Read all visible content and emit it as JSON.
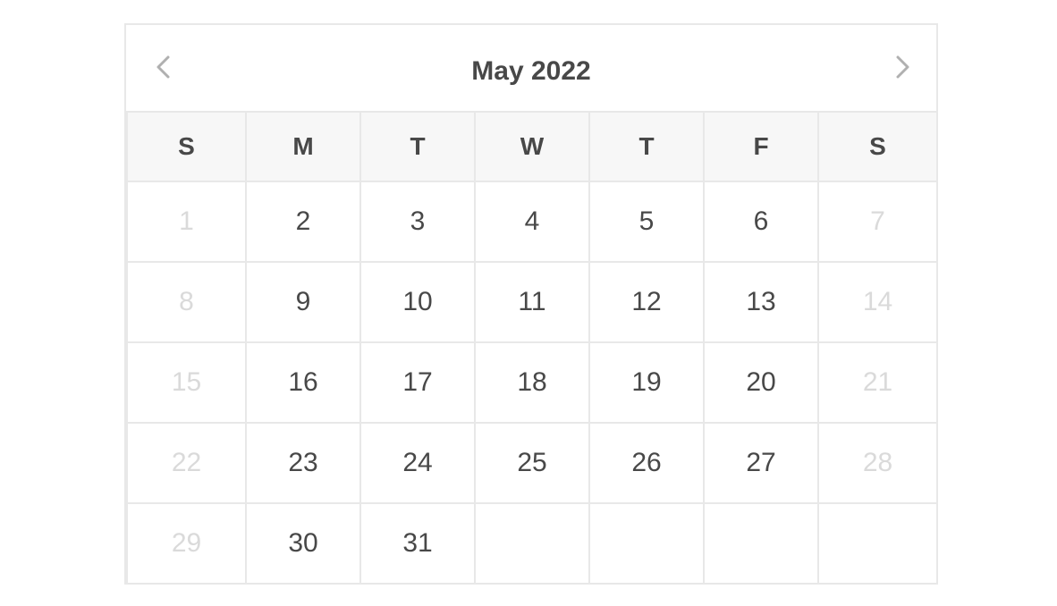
{
  "header": {
    "title": "May 2022",
    "prev_icon": "chevron-left-icon",
    "next_icon": "chevron-right-icon"
  },
  "weekdays": [
    "S",
    "M",
    "T",
    "W",
    "T",
    "F",
    "S"
  ],
  "weeks": [
    [
      "1",
      "2",
      "3",
      "4",
      "5",
      "6",
      "7"
    ],
    [
      "8",
      "9",
      "10",
      "11",
      "12",
      "13",
      "14"
    ],
    [
      "15",
      "16",
      "17",
      "18",
      "19",
      "20",
      "21"
    ],
    [
      "22",
      "23",
      "24",
      "25",
      "26",
      "27",
      "28"
    ],
    [
      "29",
      "30",
      "31",
      "",
      "",
      "",
      ""
    ]
  ],
  "disabled_days": [
    "1",
    "7",
    "8",
    "14",
    "15",
    "21",
    "22",
    "28",
    "29"
  ],
  "colors": {
    "text": "#484848",
    "disabled": "#dadada",
    "border": "#e8e8e8",
    "header_bg": "#f7f7f7",
    "nav_icon": "#b0b0b0"
  }
}
